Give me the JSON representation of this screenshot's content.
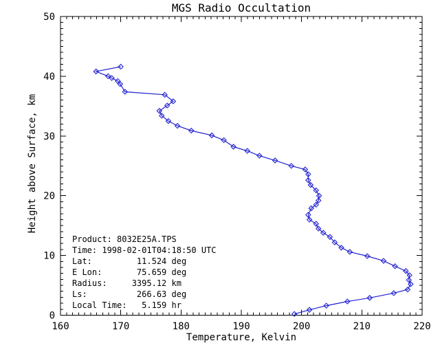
{
  "window": {
    "background": "#ffffff"
  },
  "chart_data": {
    "type": "line",
    "title": "MGS Radio Occultation",
    "xlabel": "Temperature, Kelvin",
    "ylabel": "Height above Surface, km",
    "xlim": [
      160,
      220
    ],
    "ylim": [
      0,
      50
    ],
    "x_major_ticks": [
      160,
      170,
      180,
      190,
      200,
      210,
      220
    ],
    "y_major_ticks": [
      0,
      10,
      20,
      30,
      40,
      50
    ],
    "x_minor_step": 1,
    "y_minor_step": 1,
    "grid": false,
    "legend": "none",
    "frame": "box-with-inward-ticks",
    "line_color": "#2020d0",
    "axis_color": "#000000",
    "marker": "open-diamond",
    "series": [
      {
        "name": "temperature-profile",
        "x_units": "Kelvin",
        "y_units": "km",
        "points": [
          [
            170.0,
            41.6
          ],
          [
            165.9,
            40.8
          ],
          [
            167.9,
            40.0
          ],
          [
            168.5,
            39.7
          ],
          [
            169.5,
            39.2
          ],
          [
            169.9,
            38.7
          ],
          [
            170.7,
            37.4
          ],
          [
            177.3,
            36.9
          ],
          [
            178.7,
            35.8
          ],
          [
            177.7,
            35.1
          ],
          [
            176.4,
            34.2
          ],
          [
            176.8,
            33.4
          ],
          [
            177.9,
            32.5
          ],
          [
            179.4,
            31.7
          ],
          [
            181.7,
            30.9
          ],
          [
            185.1,
            30.1
          ],
          [
            187.1,
            29.3
          ],
          [
            188.7,
            28.2
          ],
          [
            191.0,
            27.5
          ],
          [
            193.0,
            26.7
          ],
          [
            195.6,
            25.9
          ],
          [
            198.3,
            25.0
          ],
          [
            200.6,
            24.4
          ],
          [
            201.1,
            23.6
          ],
          [
            201.1,
            22.6
          ],
          [
            201.5,
            21.8
          ],
          [
            202.4,
            20.9
          ],
          [
            202.9,
            20.0
          ],
          [
            202.8,
            19.2
          ],
          [
            202.4,
            18.5
          ],
          [
            201.6,
            17.9
          ],
          [
            201.1,
            16.8
          ],
          [
            201.3,
            16.0
          ],
          [
            202.4,
            15.3
          ],
          [
            202.8,
            14.5
          ],
          [
            203.6,
            13.8
          ],
          [
            204.7,
            13.1
          ],
          [
            205.5,
            12.2
          ],
          [
            206.6,
            11.3
          ],
          [
            208.0,
            10.6
          ],
          [
            210.9,
            9.9
          ],
          [
            213.6,
            9.1
          ],
          [
            215.5,
            8.2
          ],
          [
            217.3,
            7.4
          ],
          [
            217.9,
            6.7
          ],
          [
            217.8,
            5.9
          ],
          [
            218.1,
            5.2
          ],
          [
            217.6,
            4.3
          ],
          [
            215.3,
            3.7
          ],
          [
            211.3,
            2.9
          ],
          [
            207.6,
            2.3
          ],
          [
            204.1,
            1.6
          ],
          [
            201.3,
            0.9
          ],
          [
            198.8,
            0.2
          ]
        ]
      }
    ]
  },
  "annotation": {
    "lines": [
      "Product: 8032E25A.TPS",
      "Time: 1998-02-01T04:18:50 UTC",
      "Lat:         11.524 deg",
      "E Lon:       75.659 deg",
      "Radius:     3395.12 km",
      "Ls:          266.63 deg",
      "Local Time:   5.159 hr"
    ]
  }
}
